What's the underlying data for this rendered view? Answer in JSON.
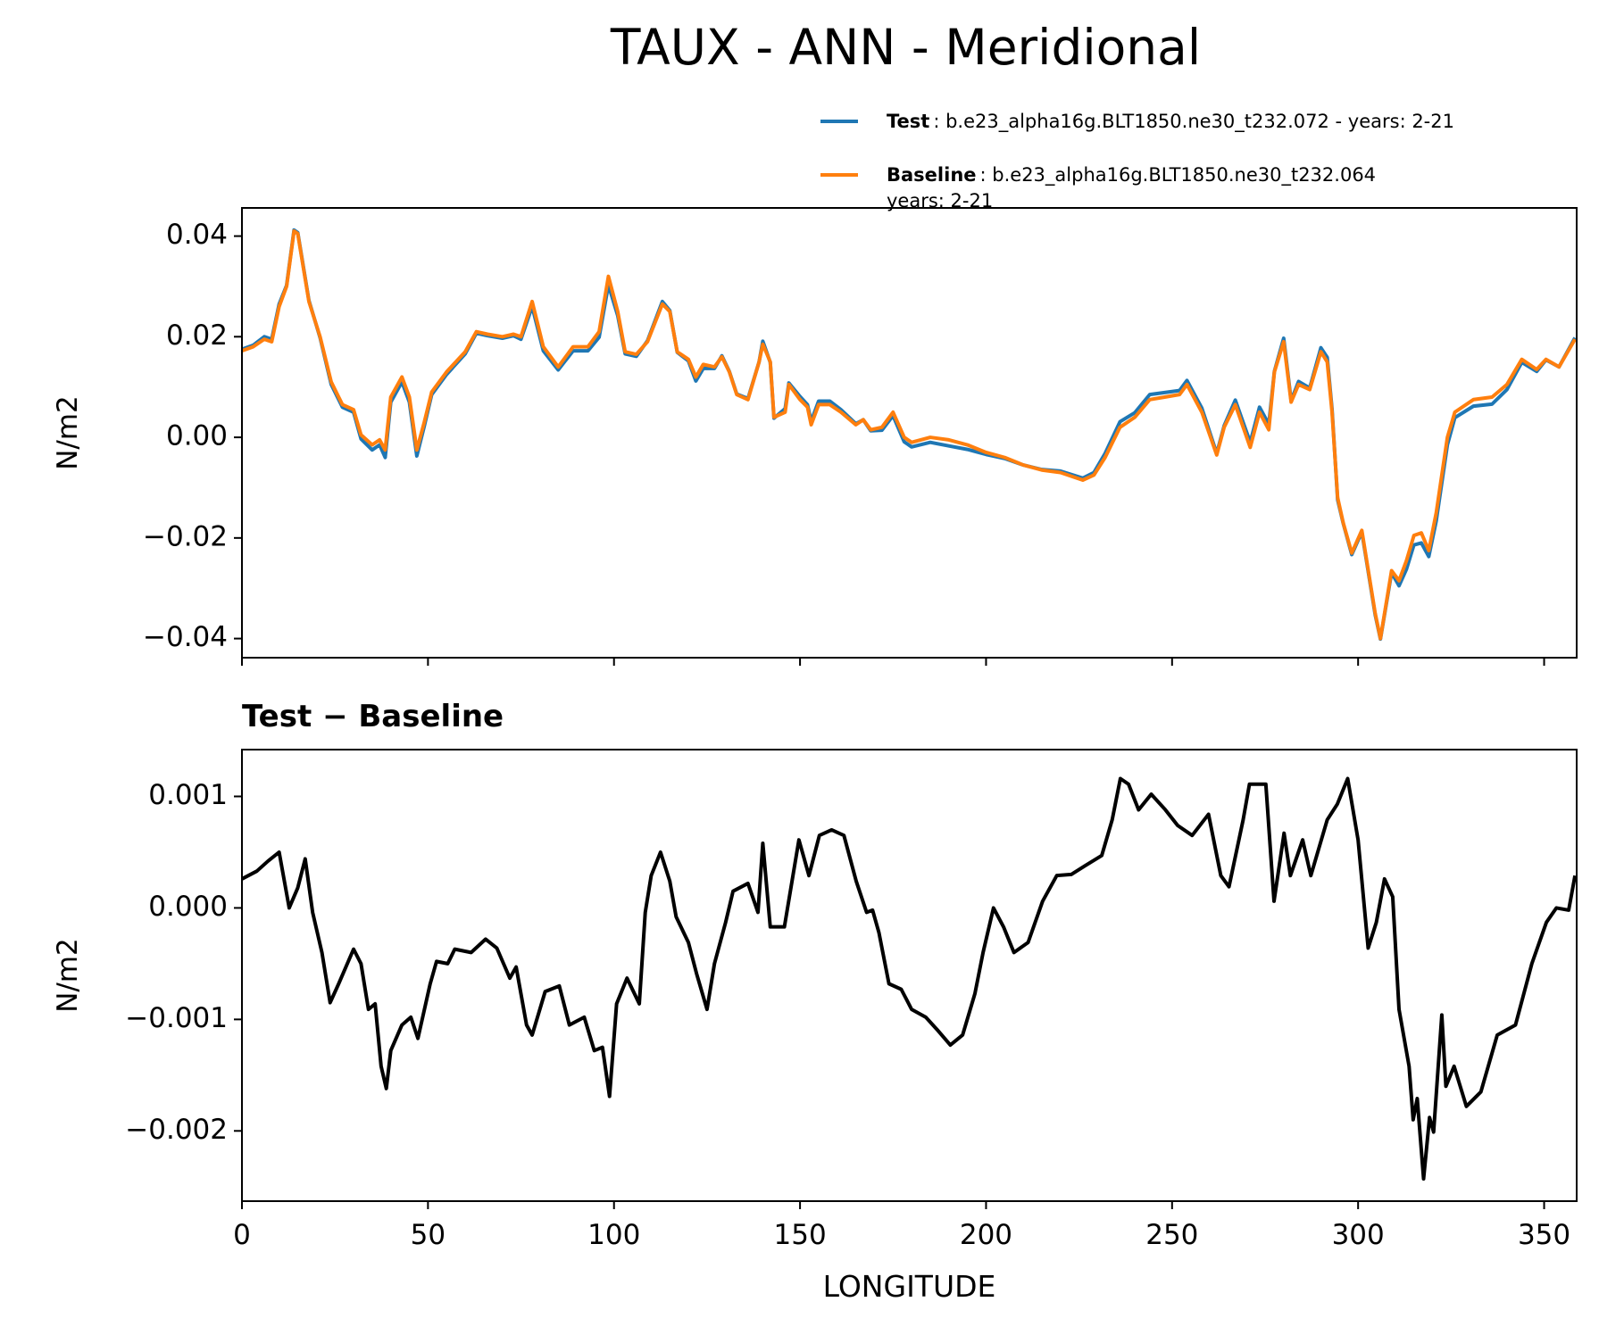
{
  "chart_data": [
    {
      "type": "line",
      "title": "TAUX - ANN - Meridional",
      "ylabel": "N/m2",
      "xlim": [
        0,
        358.75
      ],
      "xticks": [
        0,
        50,
        100,
        150,
        200,
        250,
        300,
        350
      ],
      "ylim": [
        -0.0438,
        0.0456
      ],
      "yticks": [
        {
          "value": -0.04,
          "label": "−0.04"
        },
        {
          "value": -0.02,
          "label": "−0.02"
        },
        {
          "value": 0,
          "label": "0.00"
        },
        {
          "value": 0.02,
          "label": "0.02"
        },
        {
          "value": 0.04,
          "label": "0.04"
        }
      ],
      "x": [
        0,
        3,
        6,
        8,
        10,
        12,
        14,
        15,
        18,
        21,
        24,
        27,
        30,
        32,
        35,
        37,
        38.5,
        40,
        43,
        45,
        47,
        49,
        51,
        55,
        60,
        63,
        66,
        70,
        73,
        75,
        78,
        81,
        85,
        89,
        93,
        96,
        98.5,
        101,
        103,
        106,
        109,
        113,
        115,
        117,
        120,
        122,
        124,
        127,
        129,
        131,
        133,
        136,
        139,
        140,
        142,
        143,
        146,
        147,
        150,
        152,
        153,
        155,
        158,
        161,
        165,
        167,
        169,
        172,
        175,
        178,
        180,
        185,
        190,
        195,
        200,
        205,
        210,
        215,
        220,
        226,
        229,
        232,
        236,
        240,
        244,
        248,
        252,
        254,
        258,
        262,
        264,
        267,
        271,
        273.5,
        276,
        277.5,
        280,
        282,
        284,
        287,
        290,
        291.7,
        293,
        294.5,
        296,
        298.3,
        301,
        304.6,
        306,
        309,
        311,
        313,
        315,
        317,
        319,
        321,
        324,
        326,
        331,
        336,
        340,
        344,
        348,
        350.5,
        354,
        358.3
      ],
      "series": [
        {
          "name": "Test",
          "label_lines": [
            ": b.e23_alpha16g.BLT1850.ne30_t232.072 - years: 2-21"
          ],
          "color": "#1f77b4",
          "values": [
            0.0175,
            0.0183,
            0.02,
            0.0195,
            0.0265,
            0.0302,
            0.0412,
            0.0407,
            0.0272,
            0.0198,
            0.0105,
            0.006,
            0.005,
            -0.0003,
            -0.0025,
            -0.0015,
            -0.004,
            0.007,
            0.011,
            0.007,
            -0.0037,
            0.0022,
            0.0085,
            0.0125,
            0.0166,
            0.0207,
            0.0202,
            0.0197,
            0.0202,
            0.0195,
            0.026,
            0.0172,
            0.0134,
            0.0172,
            0.0172,
            0.0199,
            0.0303,
            0.0242,
            0.0166,
            0.0161,
            0.0192,
            0.027,
            0.0252,
            0.0169,
            0.0152,
            0.0112,
            0.0137,
            0.0137,
            0.0162,
            0.0131,
            0.0086,
            0.0077,
            0.015,
            0.0191,
            0.0149,
            0.0038,
            0.0057,
            0.0108,
            0.0081,
            0.0065,
            0.0032,
            0.0072,
            0.0072,
            0.0055,
            0.0027,
            0.0035,
            0.0013,
            0.0014,
            0.0043,
            -0.0009,
            -0.0019,
            -0.001,
            -0.0017,
            -0.0024,
            -0.0034,
            -0.0042,
            -0.0055,
            -0.0064,
            -0.0067,
            -0.0081,
            -0.007,
            -0.0032,
            0.0031,
            0.0049,
            0.0085,
            0.0089,
            0.0093,
            0.0113,
            0.0058,
            -0.0032,
            0.0023,
            0.0074,
            -0.001,
            0.006,
            0.0026,
            0.0131,
            0.0197,
            0.0073,
            0.0111,
            0.0098,
            0.0178,
            0.0159,
            0.0056,
            -0.0124,
            -0.0171,
            -0.0233,
            -0.0188,
            -0.0353,
            -0.0401,
            -0.0269,
            -0.0295,
            -0.0262,
            -0.0214,
            -0.021,
            -0.0237,
            -0.0166,
            -0.0015,
            0.0039,
            0.0062,
            0.0066,
            0.0095,
            0.0149,
            0.0131,
            0.0154,
            0.014,
            0.0198
          ]
        },
        {
          "name": "Baseline",
          "label_lines": [
            ": b.e23_alpha16g.BLT1850.ne30_t232.064",
            "years: 2-21"
          ],
          "color": "#ff7f0e",
          "values": [
            0.0172,
            0.018,
            0.0195,
            0.019,
            0.026,
            0.03,
            0.041,
            0.0405,
            0.027,
            0.02,
            0.011,
            0.0065,
            0.0055,
            0.0005,
            -0.0015,
            -0.0005,
            -0.0025,
            0.008,
            0.012,
            0.008,
            -0.0025,
            0.003,
            0.009,
            0.013,
            0.017,
            0.021,
            0.0205,
            0.02,
            0.0205,
            0.02,
            0.027,
            0.018,
            0.014,
            0.018,
            0.018,
            0.021,
            0.032,
            0.025,
            0.017,
            0.0165,
            0.019,
            0.0265,
            0.025,
            0.017,
            0.0155,
            0.012,
            0.0145,
            0.014,
            0.016,
            0.013,
            0.0085,
            0.0075,
            0.015,
            0.0185,
            0.015,
            0.004,
            0.005,
            0.0105,
            0.0075,
            0.006,
            0.0025,
            0.0065,
            0.0065,
            0.005,
            0.0025,
            0.0035,
            0.0015,
            0.002,
            0.005,
            0.0,
            -0.001,
            0.0,
            -0.0005,
            -0.0015,
            -0.003,
            -0.004,
            -0.0055,
            -0.0065,
            -0.007,
            -0.0085,
            -0.0075,
            -0.004,
            0.002,
            0.004,
            0.0075,
            0.008,
            0.0085,
            0.0105,
            0.005,
            -0.0035,
            0.002,
            0.0065,
            -0.002,
            0.005,
            0.0015,
            0.013,
            0.019,
            0.007,
            0.0105,
            0.0095,
            0.017,
            0.015,
            0.005,
            -0.012,
            -0.017,
            -0.023,
            -0.0185,
            -0.035,
            -0.04,
            -0.0265,
            -0.0285,
            -0.0245,
            -0.0195,
            -0.019,
            -0.0225,
            -0.015,
            0.0,
            0.005,
            0.0075,
            0.008,
            0.0105,
            0.0155,
            0.0135,
            0.0155,
            0.014,
            0.0195
          ]
        }
      ]
    },
    {
      "type": "line",
      "title": "Test − Baseline",
      "ylabel": "N/m2",
      "xlabel": "LONGITUDE",
      "xlim": [
        0,
        358.75
      ],
      "xticks": [
        0,
        50,
        100,
        150,
        200,
        250,
        300,
        350
      ],
      "ylim": [
        -0.00263,
        0.00142
      ],
      "yticks": [
        {
          "value": -0.002,
          "label": "−0.002"
        },
        {
          "value": -0.001,
          "label": "−0.001"
        },
        {
          "value": 0,
          "label": "0.000"
        },
        {
          "value": 0.001,
          "label": "0.001"
        }
      ],
      "x": [
        0,
        4,
        7,
        10,
        12.7,
        15,
        17,
        19,
        21.5,
        23.7,
        26,
        30,
        32,
        34,
        35.8,
        37.4,
        38.8,
        40,
        43,
        45.4,
        47.3,
        50.6,
        52.3,
        55.3,
        57.2,
        61.6,
        65.5,
        68.5,
        72,
        73.7,
        76.5,
        78,
        81.5,
        85.3,
        88,
        92,
        94.7,
        96.9,
        98.8,
        100.7,
        103.5,
        106.8,
        108.4,
        110,
        112.5,
        115,
        116.7,
        120,
        122.2,
        125,
        127,
        130,
        132,
        136,
        138.7,
        140,
        142,
        145.8,
        149.7,
        152.4,
        155.2,
        158.5,
        161.8,
        165.1,
        167.9,
        169.5,
        171.2,
        173.9,
        177.2,
        180,
        183.8,
        186.8,
        190.4,
        193.7,
        197,
        199.2,
        202,
        204.7,
        207.5,
        211.3,
        215.2,
        219,
        222.9,
        226.7,
        231.1,
        233.9,
        236.1,
        238.3,
        241,
        244.4,
        248.2,
        251.5,
        255.4,
        259.8,
        263.1,
        265.3,
        269.1,
        270.8,
        275.2,
        277.4,
        280.1,
        281.8,
        285.1,
        287.3,
        291.7,
        294.4,
        297.2,
        300,
        302.7,
        304.9,
        307.1,
        309.3,
        311,
        313.7,
        314.8,
        315.9,
        317.6,
        319.2,
        320.3,
        322.5,
        323.6,
        325.8,
        329.1,
        333,
        337.4,
        342.3,
        346.7,
        350.6,
        353.3,
        356.6,
        358.3
      ],
      "series": [
        {
          "color": "#000000",
          "values": [
            0.00026,
            0.00033,
            0.00042,
            0.0005,
            0.0,
            0.00018,
            0.00044,
            -4e-05,
            -0.0004,
            -0.00085,
            -0.00068,
            -0.00037,
            -0.0005,
            -0.00091,
            -0.00086,
            -0.00142,
            -0.00162,
            -0.00128,
            -0.00105,
            -0.00098,
            -0.00117,
            -0.00068,
            -0.00048,
            -0.0005,
            -0.00037,
            -0.0004,
            -0.00028,
            -0.00036,
            -0.00063,
            -0.00053,
            -0.00105,
            -0.00114,
            -0.00075,
            -0.0007,
            -0.00105,
            -0.00098,
            -0.00128,
            -0.00125,
            -0.00169,
            -0.00086,
            -0.00063,
            -0.00086,
            -4e-05,
            0.00029,
            0.0005,
            0.00024,
            -8e-05,
            -0.00031,
            -0.00059,
            -0.00091,
            -0.0005,
            -0.00013,
            0.00015,
            0.00022,
            -4e-05,
            0.00058,
            -0.00017,
            -0.00017,
            0.00061,
            0.00029,
            0.00065,
            0.0007,
            0.00065,
            0.00024,
            -4e-05,
            -2e-05,
            -0.00022,
            -0.00068,
            -0.00073,
            -0.00091,
            -0.00098,
            -0.00109,
            -0.00123,
            -0.00114,
            -0.00077,
            -0.0004,
            0.0,
            -0.00017,
            -0.0004,
            -0.00031,
            6e-05,
            0.00029,
            0.0003,
            0.00038,
            0.00047,
            0.00079,
            0.00116,
            0.00111,
            0.00088,
            0.00102,
            0.00088,
            0.00074,
            0.00065,
            0.00084,
            0.00029,
            0.00019,
            0.00079,
            0.00111,
            0.00111,
            6e-05,
            0.00067,
            0.00029,
            0.00061,
            0.00029,
            0.00079,
            0.00093,
            0.00116,
            0.00061,
            -0.00036,
            -0.00013,
            0.00026,
            0.0001,
            -0.00091,
            -0.00142,
            -0.0019,
            -0.00171,
            -0.00243,
            -0.00188,
            -0.00201,
            -0.00096,
            -0.0016,
            -0.00142,
            -0.00178,
            -0.00165,
            -0.00114,
            -0.00105,
            -0.0005,
            -0.00013,
            0.0,
            -2e-05,
            0.00029
          ]
        }
      ]
    }
  ]
}
